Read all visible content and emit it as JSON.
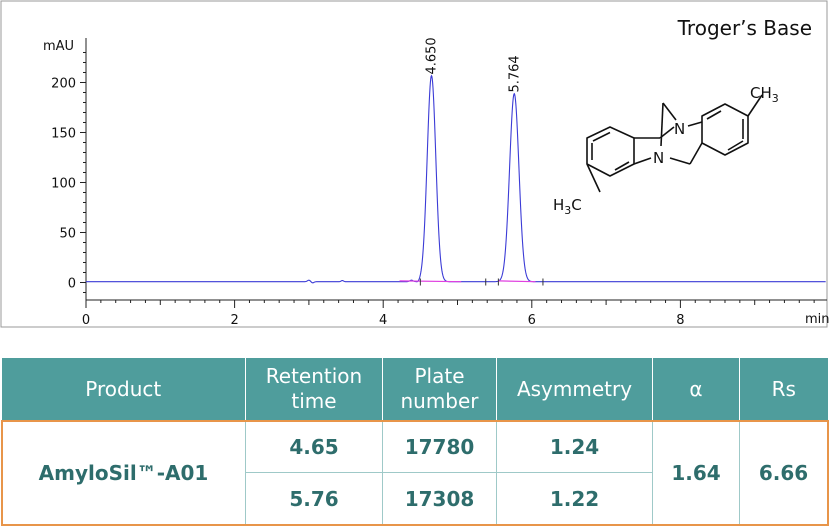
{
  "chart_data": {
    "type": "line",
    "title": "Troger’s Base",
    "ylabel": "mAU",
    "xlabel": "min",
    "x_ticks": [
      "0",
      "2",
      "4",
      "6",
      "8"
    ],
    "y_ticks": [
      "0",
      "50",
      "100",
      "150",
      "200"
    ],
    "xlim": [
      0,
      10
    ],
    "ylim": [
      -10,
      245
    ],
    "peaks": [
      {
        "label": "4.650",
        "rt": 4.65,
        "height": 206,
        "width": 0.058
      },
      {
        "label": "5.764",
        "rt": 5.764,
        "height": 188,
        "width": 0.063
      }
    ],
    "baseline": 0.8
  },
  "molecule": {
    "top_group": "CH",
    "top_sub": "3",
    "bottom_group_h": "H",
    "bottom_sub": "3",
    "bottom_group_c": "C",
    "n_label": "N"
  },
  "table": {
    "headers": [
      [
        "Product"
      ],
      [
        "Retention",
        "time"
      ],
      [
        "Plate",
        "number"
      ],
      [
        "Asymmetry"
      ],
      [
        "α"
      ],
      [
        "Rs"
      ]
    ],
    "product": "AmyloSil™-A01",
    "rows": [
      {
        "retention": "4.65",
        "plates": "17780",
        "asymmetry": "1.24"
      },
      {
        "retention": "5.76",
        "plates": "17308",
        "asymmetry": "1.22"
      }
    ],
    "alpha": "1.64",
    "rs": "6.66"
  }
}
